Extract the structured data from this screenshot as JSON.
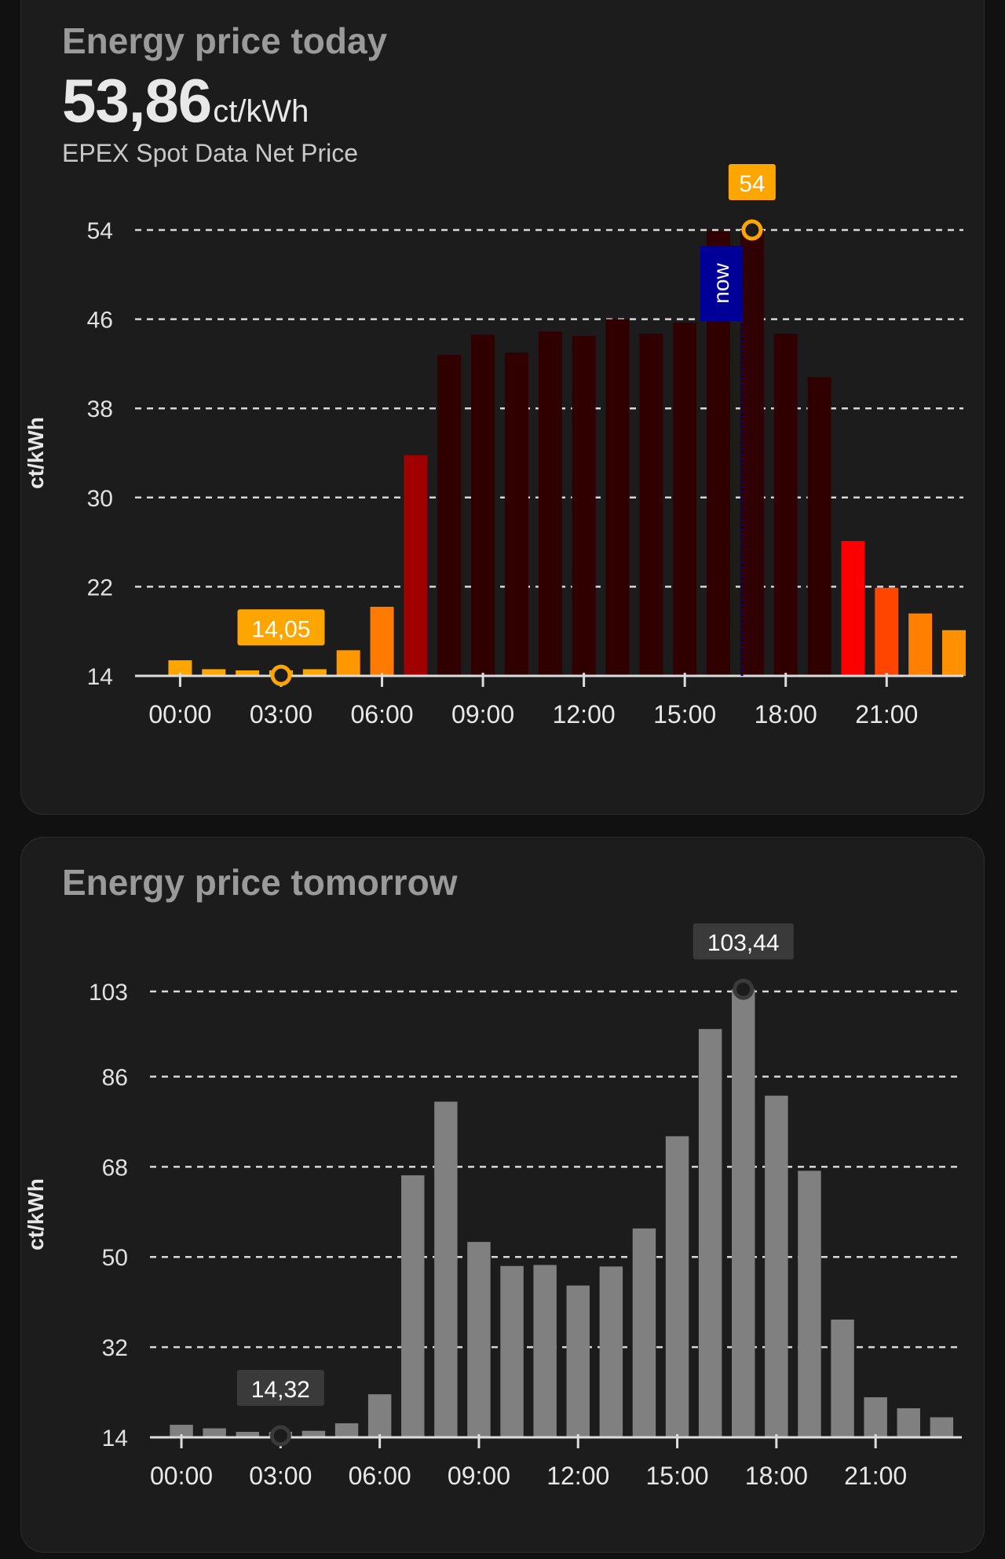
{
  "today": {
    "title": "Energy price today",
    "current_price": "53,86",
    "current_unit": "ct/kWh",
    "subtitle": "EPEX Spot Data Net Price"
  },
  "tomorrow": {
    "title": "Energy price tomorrow"
  },
  "chart_data": [
    {
      "type": "bar",
      "title": "Energy price today",
      "ylabel": "ct/kWh",
      "ylim": [
        14,
        54
      ],
      "yticks": [
        14,
        22,
        30,
        38,
        46,
        54
      ],
      "xticks": [
        "00:00",
        "03:00",
        "06:00",
        "09:00",
        "12:00",
        "15:00",
        "18:00",
        "21:00"
      ],
      "categories": [
        "00:00",
        "01:00",
        "02:00",
        "03:00",
        "04:00",
        "05:00",
        "06:00",
        "07:00",
        "08:00",
        "09:00",
        "10:00",
        "11:00",
        "12:00",
        "13:00",
        "14:00",
        "15:00",
        "16:00",
        "17:00",
        "18:00",
        "19:00",
        "20:00",
        "21:00",
        "22:00",
        "23:00"
      ],
      "values": [
        15.4,
        14.6,
        14.3,
        14.05,
        14.6,
        16.3,
        20.2,
        33.8,
        42.8,
        44.6,
        43.0,
        44.9,
        44.5,
        46.0,
        44.7,
        45.7,
        53.9,
        54.0,
        44.7,
        40.8,
        26.1,
        21.9,
        19.6,
        18.1
      ],
      "min_label": "14,05",
      "max_label": "54",
      "now_label": "now",
      "now_hour": 16.7,
      "grid": true,
      "colors": [
        "#ffa500",
        "#ffa500",
        "#ffa500",
        "#ffa500",
        "#ffa500",
        "#ff9800",
        "#ff7a00",
        "#a00000",
        "#300000",
        "#300000",
        "#300000",
        "#300000",
        "#300000",
        "#300000",
        "#300000",
        "#300000",
        "#300000",
        "#300000",
        "#300000",
        "#300000",
        "#ff0000",
        "#ff4500",
        "#ff8000",
        "#ff9000"
      ],
      "marker_color": "#ffa500",
      "now_color": "#000099"
    },
    {
      "type": "bar",
      "title": "Energy price tomorrow",
      "ylabel": "ct/kWh",
      "ylim": [
        14,
        103
      ],
      "yticks": [
        14,
        32,
        50,
        68,
        86,
        103
      ],
      "xticks": [
        "00:00",
        "03:00",
        "06:00",
        "09:00",
        "12:00",
        "15:00",
        "18:00",
        "21:00"
      ],
      "categories": [
        "00:00",
        "01:00",
        "02:00",
        "03:00",
        "04:00",
        "05:00",
        "06:00",
        "07:00",
        "08:00",
        "09:00",
        "10:00",
        "11:00",
        "12:00",
        "13:00",
        "14:00",
        "15:00",
        "16:00",
        "17:00",
        "18:00",
        "19:00",
        "20:00",
        "21:00",
        "22:00",
        "23:00"
      ],
      "values": [
        16.5,
        15.8,
        14.9,
        14.32,
        15.3,
        16.8,
        22.6,
        66.3,
        81.0,
        53.0,
        48.2,
        48.4,
        44.3,
        48.1,
        55.7,
        74.1,
        95.5,
        103.44,
        82.2,
        67.2,
        37.5,
        22.0,
        19.8,
        18.0
      ],
      "min_label": "14,32",
      "max_label": "103,44",
      "grid": true,
      "colors": [
        "#808080"
      ],
      "marker_color": "#3a3a3a"
    }
  ]
}
